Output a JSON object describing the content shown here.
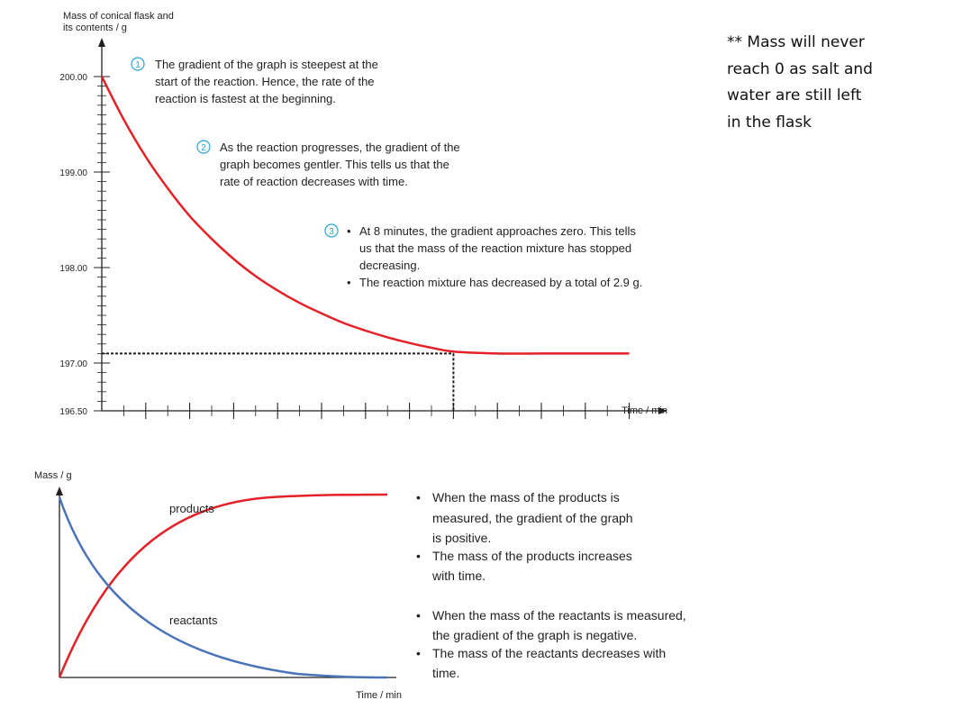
{
  "side_note": {
    "lines": [
      "** Mass will never",
      "reach 0 as salt and",
      "water are still left",
      "in the flask"
    ]
  },
  "chart_data": [
    {
      "type": "line",
      "ylabel_lines": [
        "Mass of conical flask and",
        "its contents / g"
      ],
      "xlabel": "Time / min",
      "xlim": [
        0,
        12
      ],
      "ylim": [
        196.5,
        200.0
      ],
      "x_ticks": [
        "1",
        "2",
        "3",
        "4",
        "5",
        "6",
        "7",
        "8",
        "9",
        "10",
        "11",
        "12"
      ],
      "y_ticks": [
        "200.00",
        "199.00",
        "198.00",
        "197.00",
        "196.50"
      ],
      "y_tick_values": [
        200.0,
        199.0,
        198.0,
        197.0,
        196.5
      ],
      "series": [
        {
          "color": "#e42127",
          "x": [
            0,
            0.5,
            1,
            1.5,
            2,
            2.5,
            3,
            3.5,
            4,
            4.5,
            5,
            5.5,
            6,
            6.5,
            7,
            7.5,
            8,
            9,
            10,
            11,
            12
          ],
          "values": [
            200.0,
            199.55,
            199.16,
            198.83,
            198.54,
            198.3,
            198.09,
            197.91,
            197.76,
            197.63,
            197.52,
            197.42,
            197.34,
            197.27,
            197.21,
            197.16,
            197.12,
            197.1,
            197.1,
            197.1,
            197.1
          ]
        }
      ],
      "guide_lines": {
        "y": 197.1,
        "x": 8
      },
      "annotations": [
        {
          "number": "1",
          "lines": [
            "The gradient of the graph is steepest at the",
            "start of the reaction. Hence, the rate of the",
            "reaction is fastest at the beginning."
          ]
        },
        {
          "number": "2",
          "lines": [
            "As the reaction progresses, the gradient of the",
            "graph becomes gentler. This tells us that the",
            "rate of reaction decreases with time."
          ]
        },
        {
          "number": "3",
          "bullets": [
            [
              "At 8 minutes, the gradient approaches zero. This tells",
              "us that the mass of the reaction mixture has stopped",
              "decreasing."
            ],
            [
              "The reaction mixture has decreased by a total of 2.9 g."
            ]
          ]
        }
      ]
    },
    {
      "type": "line",
      "ylabel": "Mass / g",
      "xlabel": "Time / min",
      "series": [
        {
          "name": "products",
          "color": "#e42127",
          "shape": "rising, levels off"
        },
        {
          "name": "reactants",
          "color": "#4a73b8",
          "shape": "falling, levels off near zero"
        }
      ],
      "notes": [
        [
          "When the mass of the products is",
          "measured, the gradient of the graph",
          "is positive."
        ],
        [
          "The mass of the products increases",
          "with time."
        ],
        [
          "When the mass of the reactants is measured,",
          "the gradient of the graph is negative."
        ],
        [
          "The mass of the reactants decreases with",
          "time."
        ]
      ]
    }
  ],
  "colors": {
    "red_curve": "#e42127",
    "blue_curve": "#4a73b8",
    "circle_number": "#2aa3d6",
    "ink": "#231f20"
  }
}
